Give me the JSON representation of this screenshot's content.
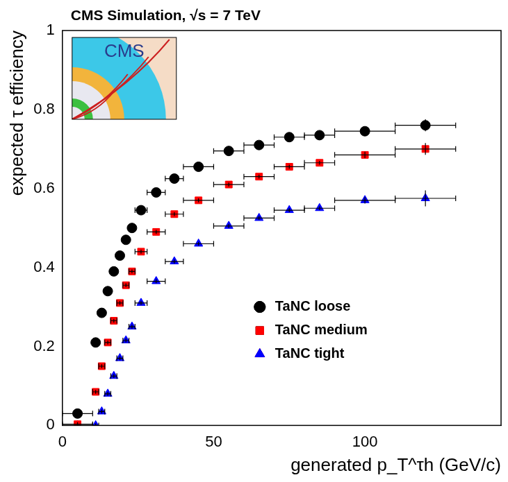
{
  "chart_data": {
    "type": "scatter",
    "title": "CMS Simulation, √s = 7 TeV",
    "x_label": "generated p_T^τh (GeV/c)",
    "y_label": "expected τ efficiency",
    "annotations": [
      "CMS"
    ],
    "xlim": [
      0,
      145
    ],
    "xticks": [
      0,
      50,
      100
    ],
    "ylim": [
      0,
      1
    ],
    "yticks": [
      0,
      0.2,
      0.4,
      0.6,
      0.8,
      1
    ],
    "grid": false,
    "legend": "lower right",
    "x": [
      5,
      11,
      13,
      15,
      17,
      19,
      21,
      23,
      26,
      31,
      37,
      45,
      55,
      65,
      75,
      85,
      100,
      120
    ],
    "xerr": [
      5,
      1,
      1,
      1,
      1,
      1,
      1,
      1,
      2,
      3,
      3,
      5,
      5,
      5,
      5,
      5,
      10,
      10
    ],
    "series": [
      {
        "name": "TaNC loose",
        "color": "#000000",
        "marker": "circle",
        "values": [
          0.03,
          0.21,
          0.285,
          0.34,
          0.39,
          0.43,
          0.47,
          0.5,
          0.545,
          0.59,
          0.625,
          0.655,
          0.695,
          0.71,
          0.73,
          0.735,
          0.745,
          0.76
        ],
        "yerr": [
          0.005,
          0.005,
          0.005,
          0.005,
          0.005,
          0.005,
          0.005,
          0.005,
          0.005,
          0.005,
          0.005,
          0.005,
          0.005,
          0.005,
          0.005,
          0.005,
          0.008,
          0.015
        ]
      },
      {
        "name": "TaNC medium",
        "color": "#ff0000",
        "marker": "rect",
        "values": [
          0.003,
          0.085,
          0.15,
          0.21,
          0.265,
          0.31,
          0.355,
          0.39,
          0.44,
          0.49,
          0.535,
          0.57,
          0.61,
          0.63,
          0.655,
          0.665,
          0.685,
          0.7
        ],
        "yerr": [
          0.005,
          0.005,
          0.005,
          0.005,
          0.005,
          0.005,
          0.005,
          0.005,
          0.005,
          0.005,
          0.005,
          0.005,
          0.005,
          0.005,
          0.005,
          0.005,
          0.008,
          0.015
        ]
      },
      {
        "name": "TaNC tight",
        "color": "#0000ff",
        "marker": "triangle",
        "values": [
          0.0,
          0.0,
          0.035,
          0.08,
          0.125,
          0.17,
          0.215,
          0.25,
          0.31,
          0.365,
          0.415,
          0.46,
          0.505,
          0.525,
          0.545,
          0.55,
          0.57,
          0.575
        ],
        "yerr": [
          0.005,
          0.005,
          0.005,
          0.005,
          0.005,
          0.005,
          0.005,
          0.005,
          0.005,
          0.005,
          0.005,
          0.005,
          0.005,
          0.005,
          0.005,
          0.005,
          0.008,
          0.02
        ]
      }
    ]
  }
}
